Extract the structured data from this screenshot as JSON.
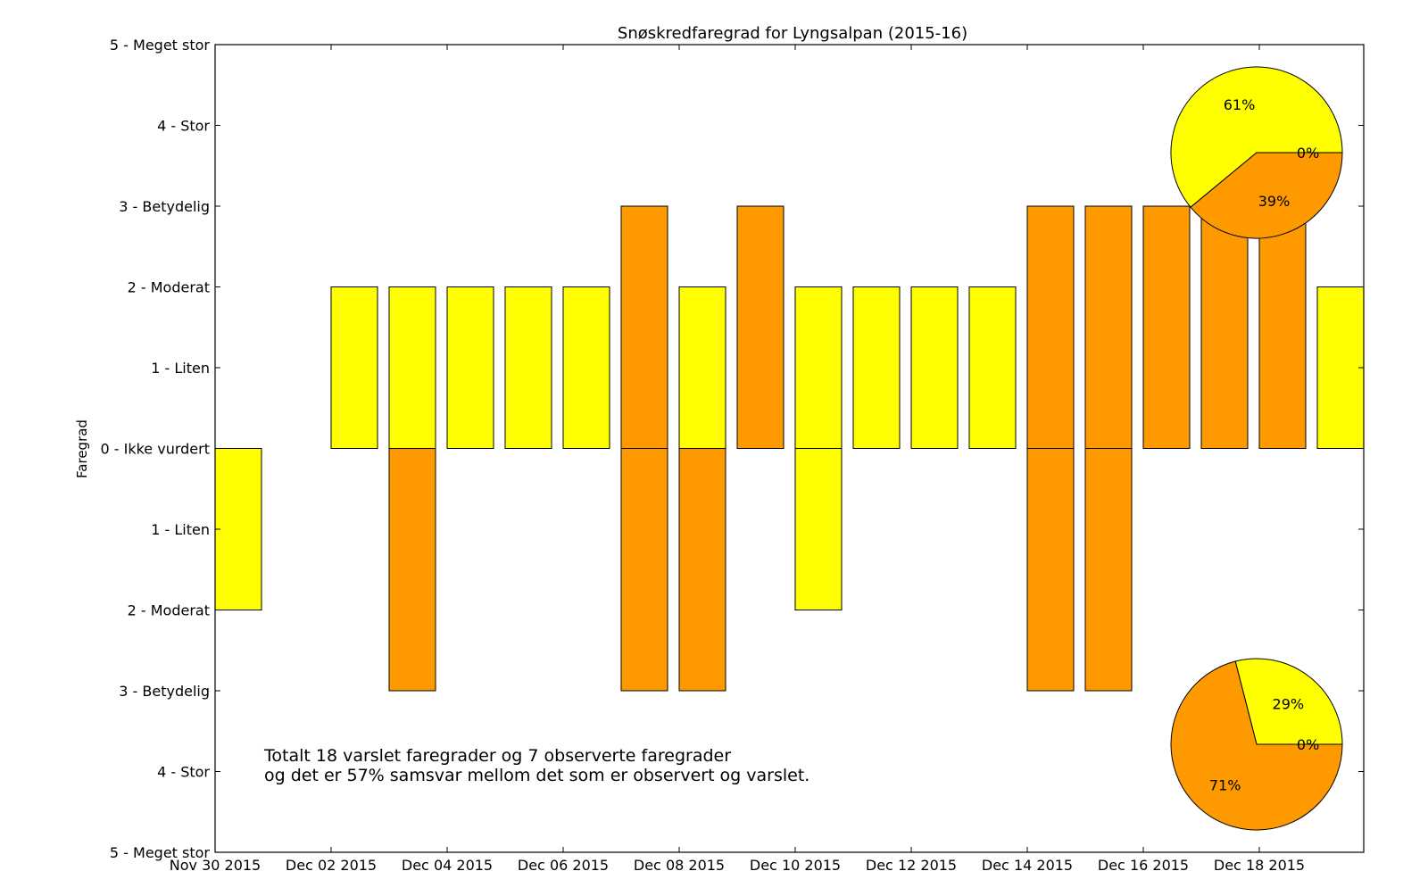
{
  "chart_data": {
    "type": "bar",
    "title": "Snøskredfaregrad for Lyngsalpan (2015-16)",
    "ylabel": "Faregrad",
    "xlabel": "",
    "ylim": [
      -5,
      5
    ],
    "ytick_values": [
      5,
      4,
      3,
      2,
      1,
      0,
      -1,
      -2,
      -3,
      -4,
      -5
    ],
    "ytick_labels": [
      "5 - Meget stor",
      "4 - Stor",
      "3 - Betydelig",
      "2 - Moderat",
      "1 - Liten",
      "0 - Ikke vurdert",
      "1 - Liten",
      "2 - Moderat",
      "3 - Betydelig",
      "4 - Stor",
      "5 - Meget stor"
    ],
    "xtick_labels": [
      "Nov 30 2015",
      "Dec 02 2015",
      "Dec 04 2015",
      "Dec 06 2015",
      "Dec 08 2015",
      "Dec 10 2015",
      "Dec 12 2015",
      "Dec 14 2015",
      "Dec 16 2015",
      "Dec 18 2015"
    ],
    "x_start": "2015-11-30",
    "x_end": "2015-12-19",
    "colors": {
      "yellow": "#ffff00",
      "orange": "#ff9900"
    },
    "varslet": [
      {
        "date": "2015-12-02",
        "value": 2,
        "color": "yellow"
      },
      {
        "date": "2015-12-03",
        "value": 2,
        "color": "yellow"
      },
      {
        "date": "2015-12-04",
        "value": 2,
        "color": "yellow"
      },
      {
        "date": "2015-12-05",
        "value": 2,
        "color": "yellow"
      },
      {
        "date": "2015-12-06",
        "value": 2,
        "color": "yellow"
      },
      {
        "date": "2015-12-07",
        "value": 3,
        "color": "orange"
      },
      {
        "date": "2015-12-08",
        "value": 2,
        "color": "yellow"
      },
      {
        "date": "2015-12-09",
        "value": 3,
        "color": "orange"
      },
      {
        "date": "2015-12-10",
        "value": 2,
        "color": "yellow"
      },
      {
        "date": "2015-12-11",
        "value": 2,
        "color": "yellow"
      },
      {
        "date": "2015-12-12",
        "value": 2,
        "color": "yellow"
      },
      {
        "date": "2015-12-13",
        "value": 2,
        "color": "yellow"
      },
      {
        "date": "2015-12-14",
        "value": 3,
        "color": "orange"
      },
      {
        "date": "2015-12-15",
        "value": 3,
        "color": "orange"
      },
      {
        "date": "2015-12-16",
        "value": 3,
        "color": "orange"
      },
      {
        "date": "2015-12-17",
        "value": 3,
        "color": "orange"
      },
      {
        "date": "2015-12-18",
        "value": 3,
        "color": "orange"
      },
      {
        "date": "2015-12-19",
        "value": 2,
        "color": "yellow"
      }
    ],
    "observert": [
      {
        "date": "2015-11-30",
        "value": 2,
        "color": "yellow"
      },
      {
        "date": "2015-12-03",
        "value": 3,
        "color": "orange"
      },
      {
        "date": "2015-12-07",
        "value": 3,
        "color": "orange"
      },
      {
        "date": "2015-12-08",
        "value": 3,
        "color": "orange"
      },
      {
        "date": "2015-12-10",
        "value": 2,
        "color": "yellow"
      },
      {
        "date": "2015-12-14",
        "value": 3,
        "color": "orange"
      },
      {
        "date": "2015-12-15",
        "value": 3,
        "color": "orange"
      }
    ],
    "pies": [
      {
        "position": "top-right",
        "slices": [
          {
            "label": "61%",
            "value": 61,
            "color": "yellow"
          },
          {
            "label": "39%",
            "value": 39,
            "color": "orange"
          },
          {
            "label": "0%",
            "value": 0,
            "color": "red"
          }
        ]
      },
      {
        "position": "bottom-right",
        "slices": [
          {
            "label": "29%",
            "value": 29,
            "color": "yellow"
          },
          {
            "label": "71%",
            "value": 71,
            "color": "orange"
          },
          {
            "label": "0%",
            "value": 0,
            "color": "red"
          }
        ]
      }
    ],
    "annotation": [
      "Totalt 18 varslet faregrader og 7 observerte faregrader",
      "og det er 57% samsvar mellom det som er observert og varslet."
    ]
  }
}
